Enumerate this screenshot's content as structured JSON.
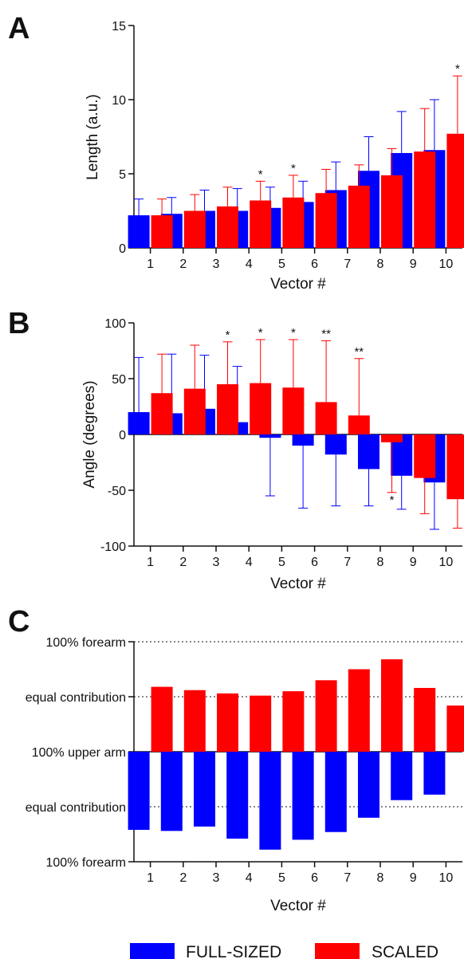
{
  "colors": {
    "full": "#0000ff",
    "scaled": "#ff0000",
    "axis": "#111111"
  },
  "legend": {
    "full_label": "FULL-SIZED",
    "scaled_label": "SCALED"
  },
  "chart_data": [
    {
      "panel": "A",
      "type": "bar",
      "ylabel": "Length (a.u.)",
      "xlabel": "Vector #",
      "ylim": [
        0,
        15
      ],
      "yticks": [
        0,
        5,
        10,
        15
      ],
      "categories": [
        "1",
        "2",
        "3",
        "4",
        "5",
        "6",
        "7",
        "8",
        "9",
        "10"
      ],
      "series": [
        {
          "name": "FULL-SIZED",
          "values": [
            2.2,
            2.3,
            2.5,
            2.5,
            2.7,
            3.1,
            3.9,
            5.2,
            6.4,
            6.6
          ],
          "error": [
            1.1,
            1.1,
            1.4,
            1.5,
            1.4,
            1.4,
            1.9,
            2.3,
            2.8,
            3.4
          ]
        },
        {
          "name": "SCALED",
          "values": [
            2.2,
            2.5,
            2.8,
            3.2,
            3.4,
            3.7,
            4.2,
            4.9,
            6.5,
            7.7
          ],
          "error": [
            1.1,
            1.1,
            1.3,
            1.3,
            1.5,
            1.6,
            1.4,
            1.8,
            2.9,
            3.9
          ]
        }
      ],
      "annotations": [
        {
          "category": "4",
          "series": "SCALED",
          "text": "*"
        },
        {
          "category": "5",
          "series": "SCALED",
          "text": "*"
        },
        {
          "category": "10",
          "series": "SCALED",
          "text": "*"
        }
      ]
    },
    {
      "panel": "B",
      "type": "bar",
      "ylabel": "Angle (degrees)",
      "xlabel": "Vector #",
      "ylim": [
        -100,
        100
      ],
      "yticks": [
        -100,
        -50,
        0,
        50,
        100
      ],
      "categories": [
        "1",
        "2",
        "3",
        "4",
        "5",
        "6",
        "7",
        "8",
        "9",
        "10"
      ],
      "series": [
        {
          "name": "FULL-SIZED",
          "values": [
            20,
            19,
            23,
            11,
            -3,
            -10,
            -18,
            -31,
            -37,
            -43
          ],
          "error": [
            49,
            53,
            48,
            50,
            52,
            56,
            46,
            33,
            30,
            42
          ]
        },
        {
          "name": "SCALED",
          "values": [
            37,
            41,
            45,
            46,
            42,
            29,
            17,
            -7,
            -39,
            -58
          ],
          "error": [
            35,
            39,
            38,
            39,
            43,
            55,
            51,
            45,
            32,
            26
          ]
        }
      ],
      "annotations": [
        {
          "category": "3",
          "series": "SCALED",
          "text": "*"
        },
        {
          "category": "4",
          "series": "SCALED",
          "text": "*"
        },
        {
          "category": "5",
          "series": "SCALED",
          "text": "*"
        },
        {
          "category": "6",
          "series": "SCALED",
          "text": "**"
        },
        {
          "category": "7",
          "series": "SCALED",
          "text": "**"
        },
        {
          "category": "8",
          "series": "SCALED",
          "text": "*"
        }
      ]
    },
    {
      "panel": "C",
      "type": "bar",
      "xlabel": "Vector #",
      "ylim": [
        -1,
        1
      ],
      "yticklabels": [
        "100% forearm",
        "equal contribution",
        "100% upper arm",
        "equal contribution",
        "100% forearm"
      ],
      "categories": [
        "1",
        "2",
        "3",
        "4",
        "5",
        "6",
        "7",
        "8",
        "9",
        "10"
      ],
      "series": [
        {
          "name": "FULL-SIZED",
          "values": [
            -0.71,
            -0.72,
            -0.68,
            -0.79,
            -0.89,
            -0.8,
            -0.73,
            -0.6,
            -0.44,
            -0.39
          ]
        },
        {
          "name": "SCALED",
          "values": [
            0.59,
            0.56,
            0.53,
            0.51,
            0.55,
            0.65,
            0.75,
            0.84,
            0.58,
            0.42
          ]
        }
      ]
    }
  ]
}
